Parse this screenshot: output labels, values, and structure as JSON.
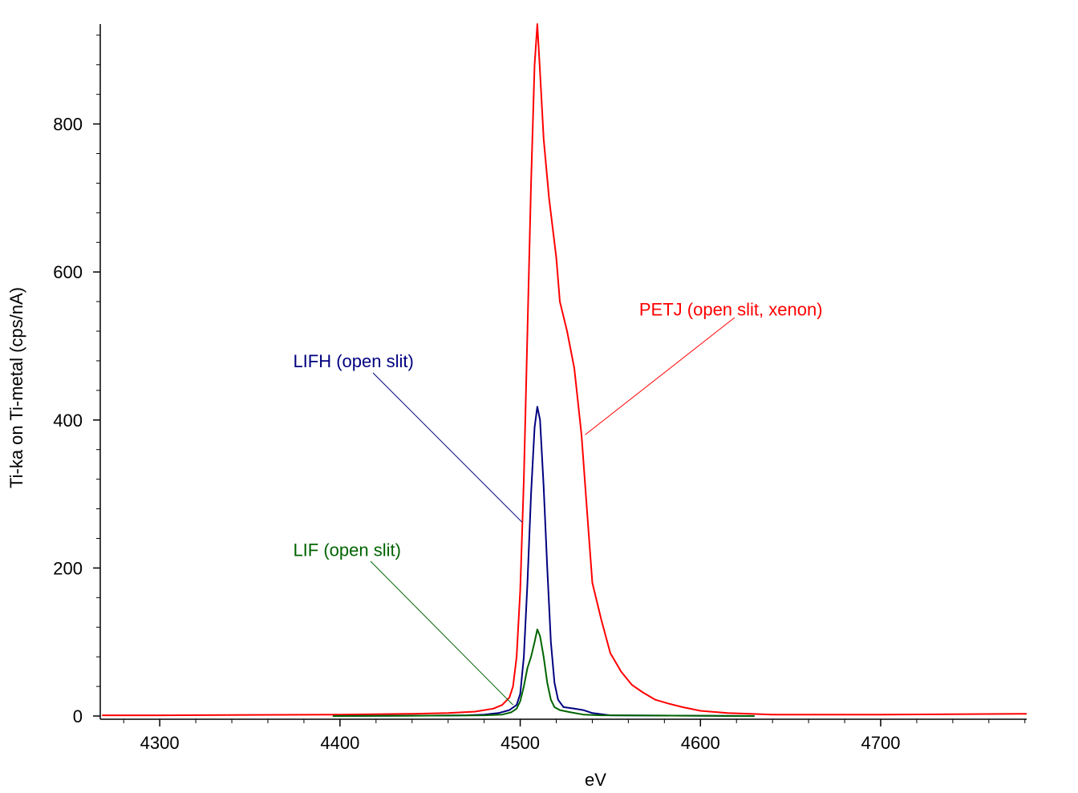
{
  "chart_data": {
    "type": "line",
    "xlabel": "eV",
    "ylabel": "Ti-ka on Ti-metal (cps/nA)",
    "xlim": [
      4267,
      4781
    ],
    "ylim": [
      0,
      935
    ],
    "x_ticks": [
      4300,
      4400,
      4500,
      4600,
      4700
    ],
    "x_tick_labels": [
      "4300",
      "4400",
      "4500",
      "4600",
      "4700"
    ],
    "y_ticks": [
      0,
      200,
      400,
      600,
      800
    ],
    "y_tick_labels": [
      "0",
      "200",
      "400",
      "600",
      "800"
    ],
    "grid": false,
    "legend": "none",
    "series": [
      {
        "name": "PETJ (open slit, xenon)",
        "color": "#ff0000",
        "annotation": {
          "text": "PETJ (open slit, xenon)",
          "text_x": 4566,
          "text_y": 550,
          "arrow_to_x": 4536,
          "arrow_to_y": 380
        },
        "points": [
          [
            4268,
            1
          ],
          [
            4300,
            1
          ],
          [
            4350,
            1.5
          ],
          [
            4400,
            2
          ],
          [
            4440,
            3
          ],
          [
            4460,
            4
          ],
          [
            4475,
            6
          ],
          [
            4485,
            10
          ],
          [
            4490,
            15
          ],
          [
            4494,
            25
          ],
          [
            4496,
            40
          ],
          [
            4498,
            80
          ],
          [
            4500,
            170
          ],
          [
            4502,
            320
          ],
          [
            4504,
            520
          ],
          [
            4506,
            720
          ],
          [
            4508,
            880
          ],
          [
            4509.5,
            935
          ],
          [
            4511,
            870
          ],
          [
            4513,
            780
          ],
          [
            4516,
            700
          ],
          [
            4520,
            620
          ],
          [
            4522,
            560
          ],
          [
            4526,
            520
          ],
          [
            4530,
            470
          ],
          [
            4534,
            380
          ],
          [
            4537,
            280
          ],
          [
            4540,
            180
          ],
          [
            4545,
            130
          ],
          [
            4550,
            85
          ],
          [
            4556,
            60
          ],
          [
            4562,
            42
          ],
          [
            4568,
            32
          ],
          [
            4575,
            22
          ],
          [
            4582,
            17
          ],
          [
            4590,
            12
          ],
          [
            4600,
            7
          ],
          [
            4615,
            4
          ],
          [
            4640,
            2
          ],
          [
            4700,
            2
          ],
          [
            4781,
            3
          ]
        ]
      },
      {
        "name": "LIFH (open slit)",
        "color": "#000080",
        "annotation": {
          "text": "LIFH (open slit)",
          "text_x": 4374,
          "text_y": 480,
          "arrow_to_x": 4501,
          "arrow_to_y": 262
        },
        "points": [
          [
            4396,
            0
          ],
          [
            4450,
            0.5
          ],
          [
            4470,
            1
          ],
          [
            4480,
            2
          ],
          [
            4488,
            4
          ],
          [
            4494,
            8
          ],
          [
            4498,
            15
          ],
          [
            4500,
            30
          ],
          [
            4502,
            80
          ],
          [
            4504,
            180
          ],
          [
            4506,
            300
          ],
          [
            4508,
            390
          ],
          [
            4509.5,
            418
          ],
          [
            4511,
            400
          ],
          [
            4513,
            310
          ],
          [
            4515,
            200
          ],
          [
            4517,
            100
          ],
          [
            4519,
            45
          ],
          [
            4521,
            22
          ],
          [
            4524,
            12
          ],
          [
            4530,
            10
          ],
          [
            4535,
            8
          ],
          [
            4540,
            4
          ],
          [
            4550,
            1
          ],
          [
            4630,
            0
          ]
        ]
      },
      {
        "name": "LIF (open slit)",
        "color": "#006400",
        "annotation": {
          "text": "LIF (open slit)",
          "text_x": 4374,
          "text_y": 225,
          "arrow_to_x": 4496,
          "arrow_to_y": 15
        },
        "points": [
          [
            4396,
            0
          ],
          [
            4450,
            0.5
          ],
          [
            4480,
            1
          ],
          [
            4490,
            2
          ],
          [
            4495,
            5
          ],
          [
            4498,
            10
          ],
          [
            4500,
            20
          ],
          [
            4502,
            40
          ],
          [
            4504,
            65
          ],
          [
            4506,
            80
          ],
          [
            4508,
            100
          ],
          [
            4509.5,
            117
          ],
          [
            4511,
            108
          ],
          [
            4513,
            80
          ],
          [
            4515,
            45
          ],
          [
            4517,
            22
          ],
          [
            4519,
            12
          ],
          [
            4522,
            8
          ],
          [
            4528,
            5
          ],
          [
            4535,
            2
          ],
          [
            4545,
            1
          ],
          [
            4630,
            0
          ]
        ]
      }
    ]
  }
}
